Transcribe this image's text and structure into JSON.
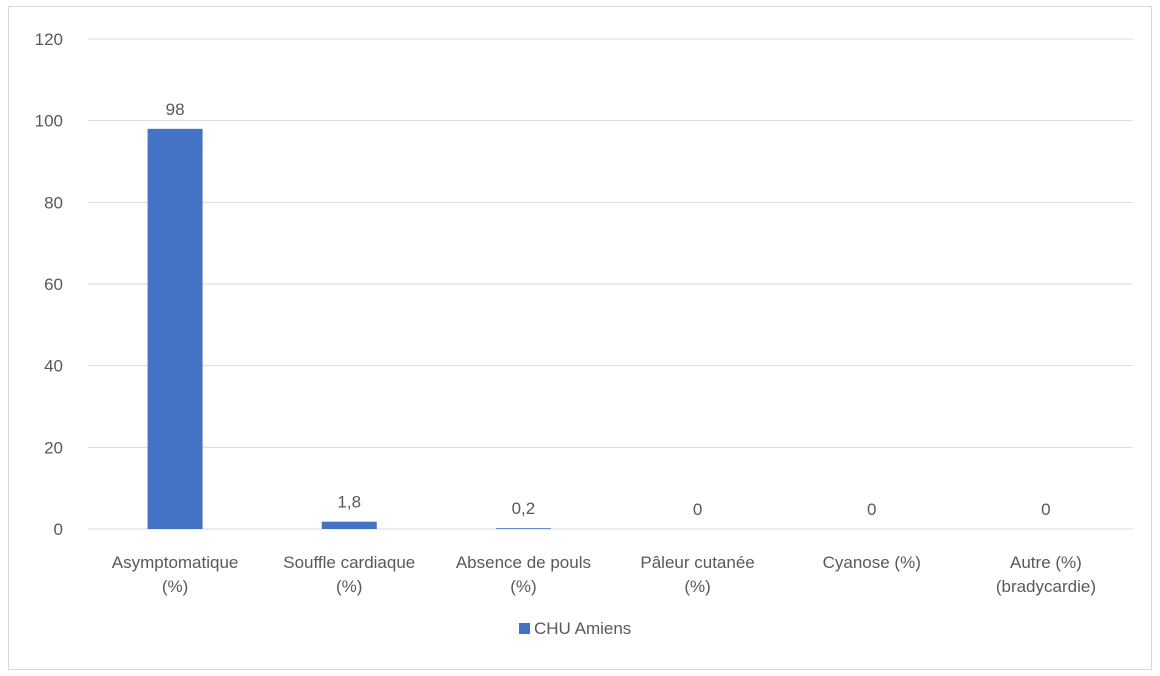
{
  "chart_data": {
    "type": "bar",
    "title": "",
    "xlabel": "",
    "ylabel": "",
    "categories": [
      [
        "Asymptomatique",
        "(%)"
      ],
      [
        "Souffle cardiaque",
        "(%)"
      ],
      [
        "Absence de pouls",
        "(%)"
      ],
      [
        "Pâleur cutanée",
        "(%)"
      ],
      [
        "Cyanose (%)"
      ],
      [
        "Autre (%)",
        "(bradycardie)"
      ]
    ],
    "series": [
      {
        "name": "CHU Amiens",
        "color": "#4472c4",
        "values": [
          98,
          1.8,
          0.2,
          0,
          0,
          0
        ],
        "data_labels": [
          "98",
          "1,8",
          "0,2",
          "0",
          "0",
          "0"
        ]
      }
    ],
    "ylim": [
      0,
      120
    ],
    "yticks": [
      0,
      20,
      40,
      60,
      80,
      100,
      120
    ],
    "grid": true,
    "legend": "bottom-center",
    "gridline_color": "#d9d9d9",
    "label_color": "#595959"
  }
}
